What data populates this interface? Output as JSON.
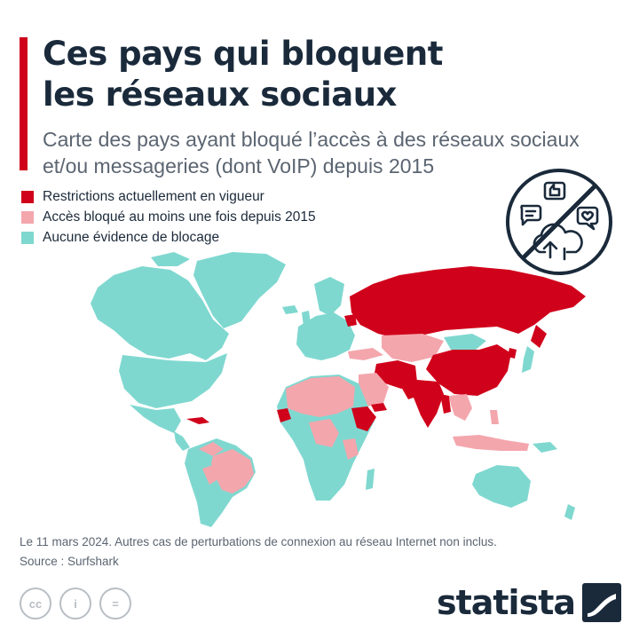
{
  "header": {
    "title_lines": [
      "Ces pays qui bloquent",
      "les réseaux sociaux"
    ],
    "subtitle_lines": [
      "Carte des pays ayant bloqué l’accès à des réseaux sociaux",
      "et/ou messageries (dont VoIP) depuis 2015"
    ]
  },
  "legend": [
    {
      "label": "Restrictions actuellement en vigueur",
      "color": "#d0021b"
    },
    {
      "label": "Accès bloqué au moins une fois depuis 2015",
      "color": "#f4a6ad"
    },
    {
      "label": "Aucune évidence de blocage",
      "color": "#7fd8d0"
    }
  ],
  "map": {
    "colors": {
      "current": "#d0021b",
      "past": "#f4a6ad",
      "none": "#7fd8d0"
    },
    "badge_icon": "no-social-media-icon"
  },
  "footer": {
    "note": "Le 11 mars 2024. Autres cas de perturbations de connexion au réseau Internet non inclus.",
    "source": "Source : Surfshark",
    "brand": "statista",
    "license_icons": [
      "cc-icon",
      "attribution-icon",
      "no-derivatives-icon"
    ],
    "license_labels": [
      "cc",
      "i",
      "="
    ]
  }
}
